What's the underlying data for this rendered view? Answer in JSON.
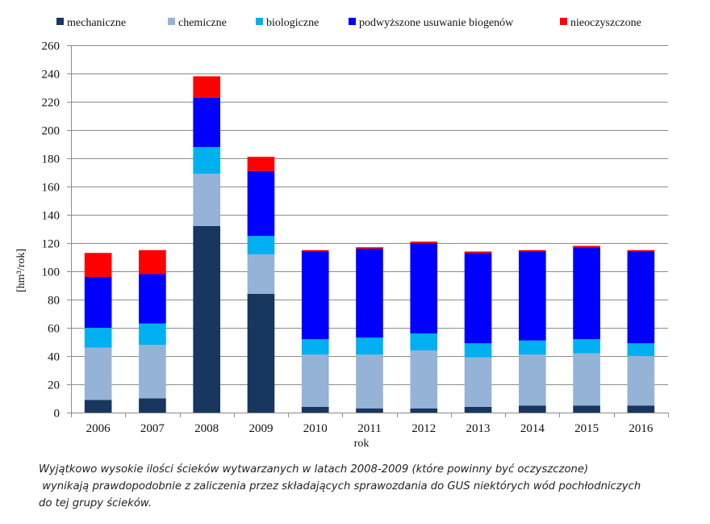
{
  "chart_data": {
    "type": "bar",
    "stacked": true,
    "categories": [
      "2006",
      "2007",
      "2008",
      "2009",
      "2010",
      "2011",
      "2012",
      "2013",
      "2014",
      "2015",
      "2016"
    ],
    "series": [
      {
        "name": "mechaniczne",
        "color": "#17375e",
        "values": [
          9,
          10,
          132,
          84,
          4,
          3,
          3,
          4,
          5,
          5,
          5
        ]
      },
      {
        "name": "chemiczne",
        "color": "#95b3d7",
        "values": [
          37,
          38,
          37,
          28,
          37,
          38,
          41,
          35,
          36,
          37,
          35
        ]
      },
      {
        "name": "biologiczne",
        "color": "#00b0f0",
        "values": [
          14,
          15,
          19,
          13,
          11,
          12,
          12,
          10,
          10,
          10,
          9
        ]
      },
      {
        "name": "podwyższone usuwanie biogenów",
        "color": "#0000ff",
        "values": [
          36,
          35,
          35,
          46,
          62,
          63,
          64,
          64,
          63,
          65,
          65
        ]
      },
      {
        "name": "nieoczyszczone",
        "color": "#ff0000",
        "values": [
          17,
          17,
          15,
          10,
          1,
          1,
          1,
          1,
          1,
          1,
          1
        ]
      }
    ],
    "ylim": [
      0,
      260
    ],
    "ytick_step": 20,
    "xlabel": "rok",
    "ylabel": "[hm³/rok]",
    "legend": "top",
    "grid": true
  },
  "caption": {
    "line1": "Wyjątkowo wysokie ilości ścieków wytwarzanych w latach 2008-2009 (które powinny być oczyszczone)",
    "line2": " wynikają prawdopodobnie z zaliczenia przez składających sprawozdania do GUS niektórych wód pochłodniczych",
    "line3": "do tej grupy ścieków."
  }
}
